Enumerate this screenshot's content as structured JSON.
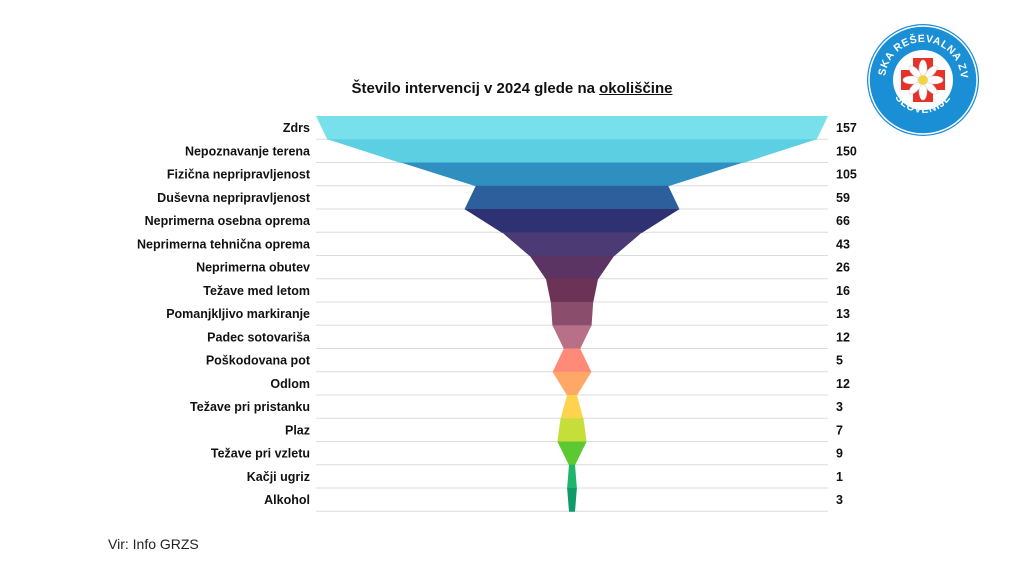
{
  "chart_data": {
    "type": "bar",
    "title": "Število intervencij v 2024 glede na ",
    "title_underlined": "okoliščine",
    "categories": [
      "Zdrs",
      "Nepoznavanje terena",
      "Fizična nepripravljenost",
      "Duševna nepripravljenost",
      "Neprimerna osebna oprema",
      "Neprimerna tehnična oprema",
      "Neprimerna obutev",
      "Težave med letom",
      "Pomanjkljivo markiranje",
      "Padec sotovariša",
      "Poškodovana pot",
      "Odlom",
      "Težave pri pristanku",
      "Plaz",
      "Težave pri vzletu",
      "Kačji ugriz",
      "Alkohol"
    ],
    "values": [
      157,
      150,
      105,
      59,
      66,
      43,
      26,
      16,
      13,
      12,
      5,
      12,
      3,
      7,
      9,
      1,
      3
    ],
    "colors": [
      "#78e0ea",
      "#5ccfe3",
      "#2f8fc0",
      "#2d5f9c",
      "#2e3272",
      "#4b3a73",
      "#5c3464",
      "#6c3356",
      "#8a4d6c",
      "#b86f88",
      "#ff8a78",
      "#ffa766",
      "#ffd34d",
      "#c6de3a",
      "#5cc832",
      "#1fb56a",
      "#0f9a6a"
    ],
    "xlabel": "",
    "ylabel": ""
  },
  "source": "Vir: Info GRZS",
  "logo": {
    "top_text": "GORSKA REŠEVALNA ZVEZA",
    "bottom_text": "SLOVENIJE"
  }
}
